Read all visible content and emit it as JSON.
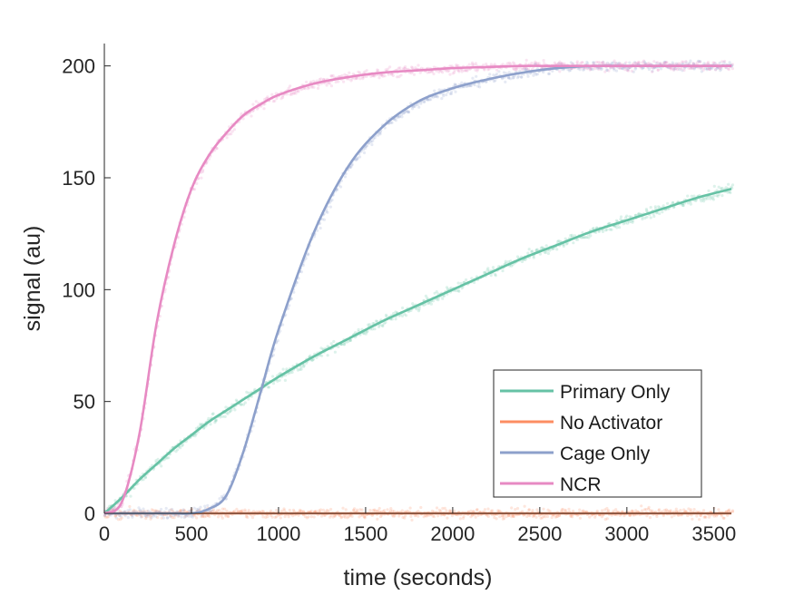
{
  "chart_data": {
    "type": "line",
    "title": "",
    "xlabel": "time (seconds)",
    "ylabel": "signal (au)",
    "xlim": [
      0,
      3600
    ],
    "ylim": [
      0,
      210
    ],
    "xticks": [
      0,
      500,
      1000,
      1500,
      2000,
      2500,
      3000,
      3500
    ],
    "xtick_labels": [
      "0",
      "500",
      "1000",
      "1500",
      "2000",
      "2500",
      "3000",
      "3500"
    ],
    "yticks": [
      0,
      50,
      100,
      150,
      200
    ],
    "ytick_labels": [
      "0",
      "50",
      "100",
      "150",
      "200"
    ],
    "grid": false,
    "legend_position": "bottom-right",
    "x": [
      0,
      100,
      200,
      300,
      400,
      500,
      600,
      700,
      800,
      900,
      1000,
      1200,
      1400,
      1600,
      1800,
      2000,
      2200,
      2400,
      2600,
      2800,
      3000,
      3200,
      3400,
      3600
    ],
    "series": [
      {
        "name": "Primary Only",
        "color": "#66c2a5",
        "values": [
          0,
          7,
          15,
          22,
          29,
          35,
          41,
          46,
          51,
          56,
          61,
          70,
          78,
          86,
          93,
          100,
          107,
          114,
          120,
          126,
          131,
          136,
          141,
          145
        ]
      },
      {
        "name": "No Activator",
        "color": "#fc8d62",
        "values": [
          0,
          0,
          0,
          0,
          0,
          0,
          0,
          0,
          0,
          0,
          0,
          0,
          0,
          0,
          0,
          0,
          0,
          0,
          0,
          0,
          0,
          0,
          0,
          0
        ]
      },
      {
        "name": "Cage Only",
        "color": "#8da0cb",
        "values": [
          0,
          0,
          0,
          0,
          0,
          0,
          2,
          8,
          28,
          55,
          82,
          125,
          155,
          173,
          184,
          190,
          194,
          197,
          199,
          200,
          200,
          200,
          200,
          200
        ]
      },
      {
        "name": "NCR",
        "color": "#e78ac3",
        "values": [
          0,
          5,
          35,
          85,
          120,
          145,
          160,
          170,
          178,
          183,
          187,
          192,
          195,
          197,
          198,
          199,
          199.5,
          200,
          200,
          200,
          200,
          200,
          200,
          200
        ]
      }
    ]
  }
}
